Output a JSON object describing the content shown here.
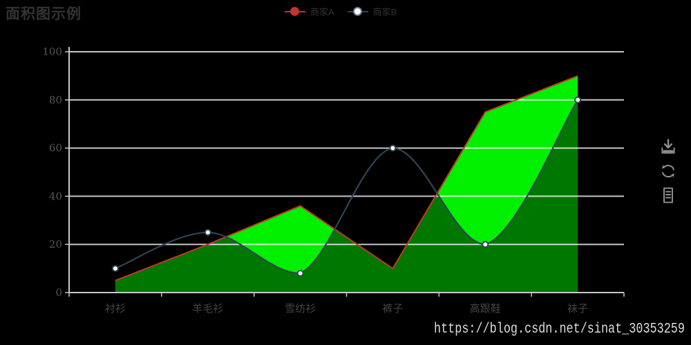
{
  "title": {
    "text": "面积图示例"
  },
  "legend": {
    "items": [
      {
        "label": "商家A",
        "color": "#c23531",
        "symbol": "filled-circle"
      },
      {
        "label": "商家B",
        "color": "#2f4554",
        "symbol": "empty-circle"
      }
    ]
  },
  "toolbox": {
    "items": [
      "save-as-image",
      "restore",
      "data-view"
    ]
  },
  "watermark": {
    "text": "https://blog.csdn.net/sinat_30353259"
  },
  "colors": {
    "background": "#000000",
    "series_a_line": "#c23531",
    "series_a_area": "#00f000",
    "series_b_line": "#2f4554",
    "series_b_area_overlay": "rgba(0,0,0,0.5)",
    "gridline": "rgba(255,255,255,0.78)",
    "axis_line": "#c9c9c9"
  },
  "chart_data": {
    "type": "area",
    "categories": [
      "衬衫",
      "羊毛衫",
      "雪纺衫",
      "裤子",
      "高跟鞋",
      "袜子"
    ],
    "series": [
      {
        "name": "商家A",
        "values": [
          5,
          20,
          36,
          10,
          75,
          90
        ],
        "line_color": "#c23531",
        "area_color": "#00f000",
        "smooth": false,
        "symbols": false
      },
      {
        "name": "商家B",
        "values": [
          10,
          25,
          8,
          60,
          20,
          80
        ],
        "line_color": "#2f4554",
        "area_color": "rgba(0,0,0,0.5)",
        "smooth": true,
        "symbols": "empty-circle"
      }
    ],
    "ylim": [
      0,
      100
    ],
    "yticks": [
      0,
      20,
      40,
      60,
      80,
      100
    ],
    "xlabel": "",
    "ylabel": "",
    "grid": true,
    "x_boundary_gap": true,
    "legend_position": "top-center"
  }
}
